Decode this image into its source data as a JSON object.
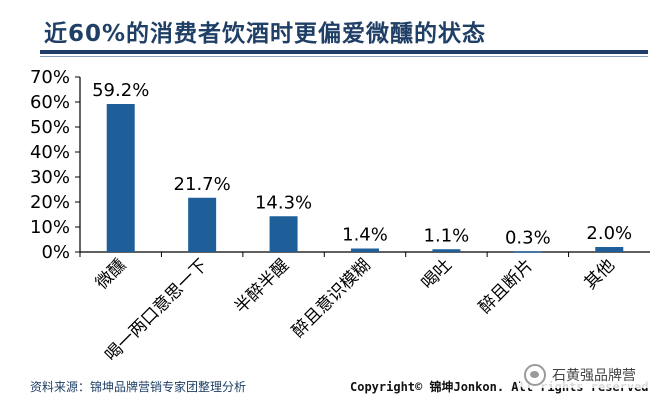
{
  "title": "近60%的消费者饮酒时更偏爱微醺的状态",
  "chart_data": {
    "type": "bar",
    "categories": [
      "微醺",
      "喝一两口意思一下",
      "半醉半醒",
      "醉且意识模糊",
      "喝吐",
      "醉且断片",
      "其他"
    ],
    "values": [
      59.2,
      21.7,
      14.3,
      1.4,
      1.1,
      0.3,
      2.0
    ],
    "value_labels": [
      "59.2%",
      "21.7%",
      "14.3%",
      "1.4%",
      "1.1%",
      "0.3%",
      "2.0%"
    ],
    "ylim": [
      0,
      70
    ],
    "yticks": [
      0,
      10,
      20,
      30,
      40,
      50,
      60,
      70
    ],
    "ytick_labels": [
      "0%",
      "10%",
      "20%",
      "30%",
      "40%",
      "50%",
      "60%",
      "70%"
    ],
    "bar_color": "#1f5f99",
    "grid": false,
    "legend": "none"
  },
  "footer": {
    "source": "资料来源：锦坤品牌营销专家团整理分析",
    "copyright": "Copyright© 锦坤Jonkon. All rights reserved"
  },
  "watermark": {
    "text": "石黄强品牌营",
    "icon": "wechat-icon"
  }
}
